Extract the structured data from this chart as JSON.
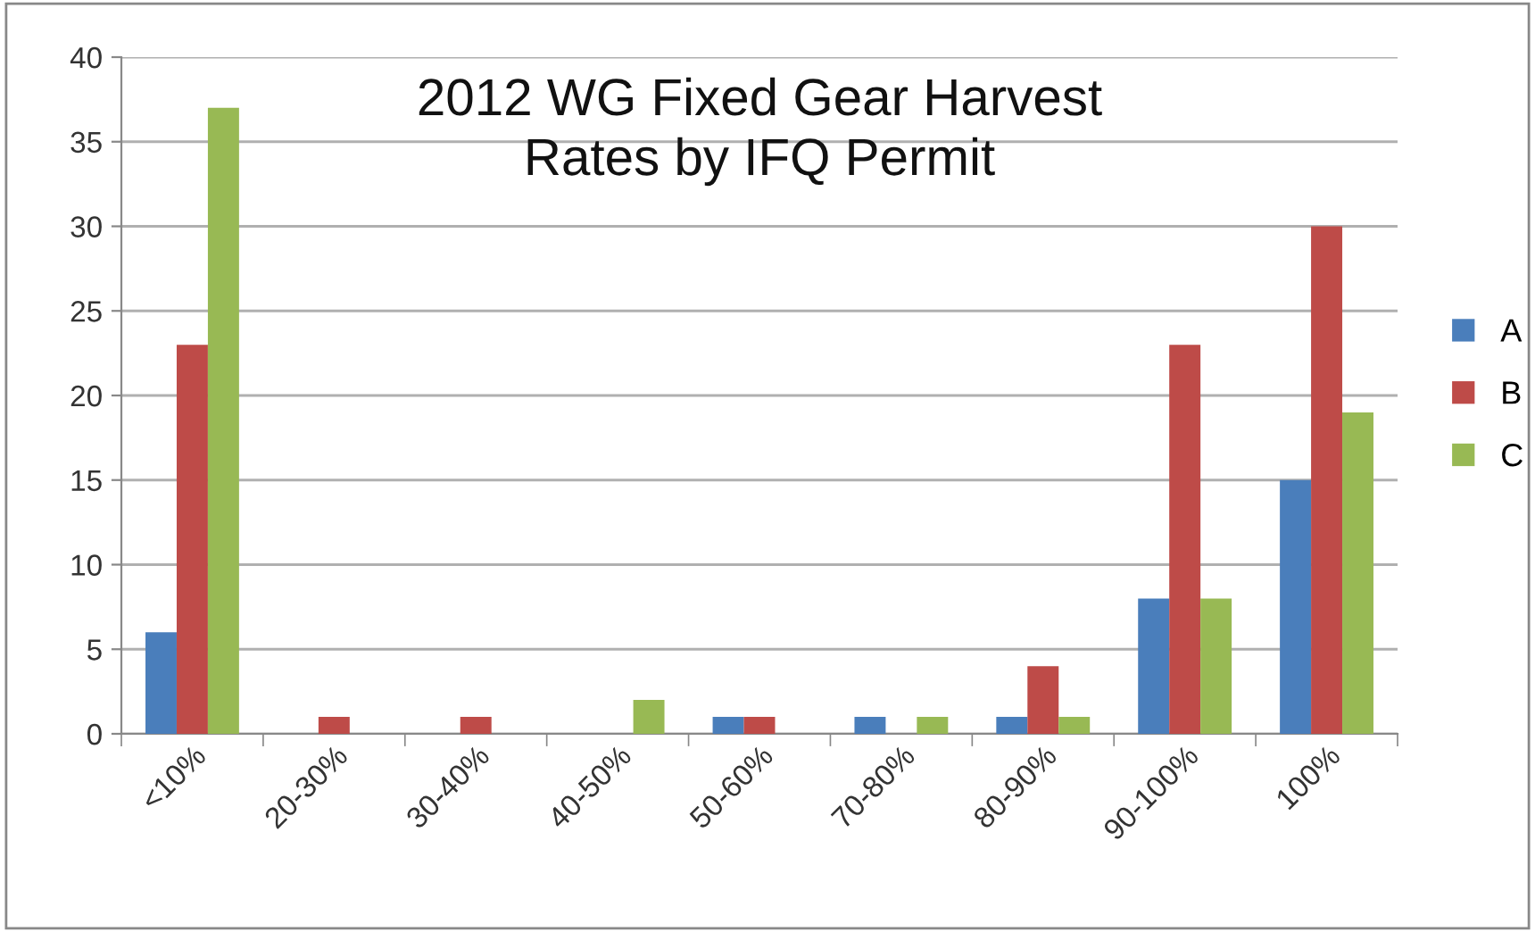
{
  "chart_data": {
    "type": "bar",
    "title": "2012 WG Fixed Gear Harvest\nRates by IFQ Permit",
    "categories": [
      "<10%",
      "20-30%",
      "30-40%",
      "40-50%",
      "50-60%",
      "70-80%",
      "80-90%",
      "90-100%",
      "100%"
    ],
    "series": [
      {
        "name": "A",
        "color": "#4a7ebb",
        "values": [
          6,
          0,
          0,
          0,
          1,
          1,
          1,
          8,
          15
        ]
      },
      {
        "name": "B",
        "color": "#be4b48",
        "values": [
          23,
          1,
          1,
          0,
          1,
          0,
          4,
          23,
          30
        ]
      },
      {
        "name": "C",
        "color": "#98b954",
        "values": [
          37,
          0,
          0,
          2,
          0,
          1,
          1,
          8,
          19
        ]
      }
    ],
    "ylim": [
      0,
      40
    ],
    "yticks": [
      0,
      5,
      10,
      15,
      20,
      25,
      30,
      35,
      40
    ],
    "grid": "y",
    "legend": "right"
  }
}
